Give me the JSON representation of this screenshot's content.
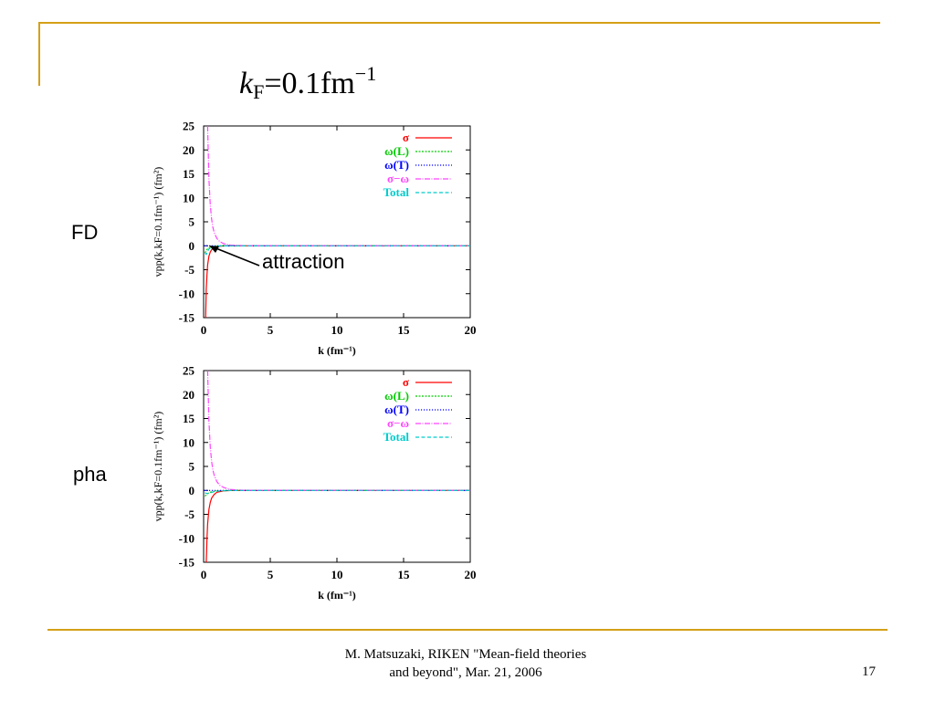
{
  "title": {
    "k": "k",
    "sub": "F",
    "eq": "=0.1fm",
    "sup": "−1"
  },
  "annotation": "attraction",
  "footer": {
    "line1": "M. Matsuzaki, RIKEN \"Mean-field theories",
    "line2": "and beyond\", Mar. 21, 2006",
    "page": "17"
  },
  "colors": {
    "accent": "#d4a017",
    "sigma": "#ff0000",
    "omega_L": "#00cc00",
    "omega_T": "#0000ff",
    "sigma_omega": "#ff44ff",
    "total": "#00cccc"
  },
  "chart_data": [
    {
      "type": "line",
      "panel_label": "FD",
      "xlabel": "k (fm⁻¹)",
      "ylabel": "vpp(k,kF=0.1fm⁻¹) (fm²)",
      "xlim": [
        0,
        20
      ],
      "ylim": [
        -15,
        25
      ],
      "xticks": [
        "0",
        "5",
        "10",
        "15",
        "20"
      ],
      "yticks": [
        "25",
        "20",
        "15",
        "10",
        "5",
        "0",
        "-5",
        "-10",
        "-15"
      ],
      "legend": "top-right",
      "series": [
        {
          "name": "σ",
          "key": "sigma",
          "x": [
            0.15,
            0.2,
            0.25,
            0.3,
            0.4,
            0.5,
            0.6,
            0.8,
            1.0,
            1.5,
            2,
            5,
            10,
            20
          ],
          "values": [
            -15,
            -9,
            -6,
            -4,
            -2.2,
            -1.3,
            -0.8,
            -0.35,
            -0.15,
            -0.03,
            0,
            0,
            0,
            0
          ]
        },
        {
          "name": "ω(L)",
          "key": "omega_L",
          "x": [
            0.1,
            0.2,
            0.3,
            0.5,
            0.8,
            1.0,
            2,
            20
          ],
          "values": [
            -1.5,
            -1.0,
            -0.6,
            -0.3,
            -0.1,
            -0.05,
            0,
            0
          ]
        },
        {
          "name": "ω(T)",
          "key": "omega_T",
          "x": [
            0,
            20
          ],
          "values": [
            0,
            0
          ]
        },
        {
          "name": "σ−ω",
          "key": "sigma_omega",
          "x": [
            0.3,
            0.4,
            0.5,
            0.6,
            0.7,
            0.8,
            1.0,
            1.2,
            1.5,
            2,
            3,
            20
          ],
          "values": [
            25,
            14,
            8.5,
            5.5,
            3.8,
            2.7,
            1.5,
            0.9,
            0.45,
            0.15,
            0.02,
            0
          ]
        },
        {
          "name": "Total",
          "key": "total",
          "x": [
            0.1,
            0.2,
            0.3,
            0.4,
            0.6,
            0.8,
            1.0,
            2,
            20
          ],
          "values": [
            -1.5,
            -1.8,
            -1.2,
            -0.7,
            -0.3,
            -0.12,
            -0.05,
            0,
            0
          ]
        }
      ]
    },
    {
      "type": "line",
      "panel_label": "pha",
      "xlabel": "k (fm⁻¹)",
      "ylabel": "vpp(k,kF=0.1fm⁻¹) (fm²)",
      "xlim": [
        0,
        20
      ],
      "ylim": [
        -15,
        25
      ],
      "xticks": [
        "0",
        "5",
        "10",
        "15",
        "20"
      ],
      "yticks": [
        "25",
        "20",
        "15",
        "10",
        "5",
        "0",
        "-5",
        "-10",
        "-15"
      ],
      "legend": "top-right",
      "series": [
        {
          "name": "σ",
          "key": "sigma",
          "x": [
            0.2,
            0.25,
            0.3,
            0.4,
            0.5,
            0.6,
            0.8,
            1.0,
            1.5,
            2,
            5,
            20
          ],
          "values": [
            -15,
            -10,
            -7,
            -4,
            -2.5,
            -1.6,
            -0.8,
            -0.4,
            -0.1,
            -0.02,
            0,
            0
          ]
        },
        {
          "name": "ω(L)",
          "key": "omega_L",
          "x": [
            0.1,
            0.2,
            0.4,
            0.6,
            1.0,
            2,
            20
          ],
          "values": [
            -1.2,
            -0.9,
            -0.5,
            -0.3,
            -0.1,
            0,
            0
          ]
        },
        {
          "name": "ω(T)",
          "key": "omega_T",
          "x": [
            0,
            20
          ],
          "values": [
            0,
            0
          ]
        },
        {
          "name": "σ−ω",
          "key": "sigma_omega",
          "x": [
            0.3,
            0.4,
            0.5,
            0.6,
            0.7,
            0.8,
            1.0,
            1.2,
            1.5,
            2,
            3,
            20
          ],
          "values": [
            25,
            14.5,
            9,
            6,
            4.2,
            3.1,
            1.8,
            1.1,
            0.6,
            0.2,
            0.03,
            0
          ]
        },
        {
          "name": "Total",
          "key": "total",
          "x": [
            0.1,
            0.3,
            0.5,
            0.8,
            1.2,
            2,
            3,
            20
          ],
          "values": [
            -0.5,
            -0.7,
            -0.5,
            -0.25,
            -0.1,
            -0.02,
            0,
            0
          ]
        }
      ]
    }
  ]
}
